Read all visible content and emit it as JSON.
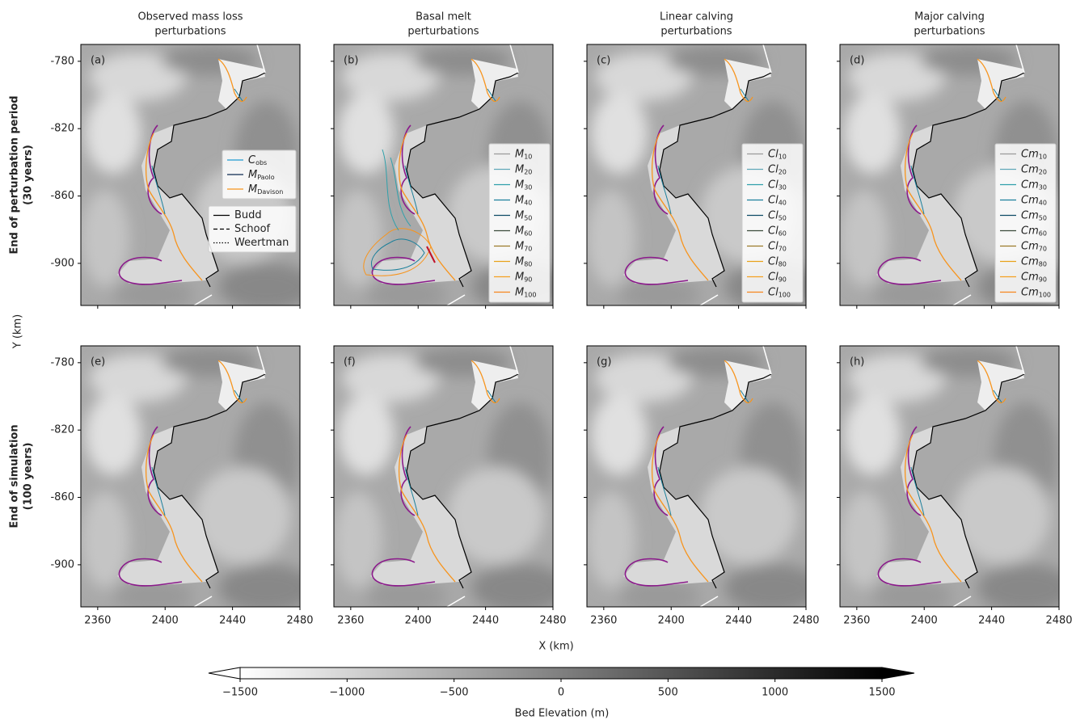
{
  "columns": [
    [
      "Observed mass loss",
      "perturbations"
    ],
    [
      "Basal melt",
      "perturbations"
    ],
    [
      "Linear calving",
      "perturbations"
    ],
    [
      "Major calving",
      "perturbations"
    ]
  ],
  "rows": [
    [
      "End of perturbation period",
      "(30 years)"
    ],
    [
      "End of simulation",
      "(100 years)"
    ]
  ],
  "panel_labels": [
    "(a)",
    "(b)",
    "(c)",
    "(d)",
    "(e)",
    "(f)",
    "(g)",
    "(h)"
  ],
  "x_axis": {
    "label": "X (km)",
    "lim": [
      2350,
      2480
    ],
    "ticks": [
      2360,
      2400,
      2440,
      2480
    ]
  },
  "y_axis": {
    "label": "Y (km)",
    "lim": [
      -925,
      -770
    ],
    "ticks": [
      -780,
      -820,
      -860,
      -900
    ]
  },
  "legends": {
    "observed": [
      {
        "base": "C",
        "sub": "obs",
        "color": "#1f9bd1"
      },
      {
        "base": "M",
        "sub": "Paolo",
        "color": "#0d2b52"
      },
      {
        "base": "M",
        "sub": "Davison",
        "color": "#f7941d"
      }
    ],
    "friction": [
      {
        "name": "Budd",
        "linestyle": "solid"
      },
      {
        "name": "Schoof",
        "linestyle": "dashed"
      },
      {
        "name": "Weertman",
        "linestyle": "dotted"
      }
    ],
    "melt": [
      {
        "base": "M",
        "sub": "10",
        "color": "#9a9a9a"
      },
      {
        "base": "M",
        "sub": "20",
        "color": "#5fa8b8"
      },
      {
        "base": "M",
        "sub": "30",
        "color": "#2fa0aa"
      },
      {
        "base": "M",
        "sub": "40",
        "color": "#1a7f9a"
      },
      {
        "base": "M",
        "sub": "50",
        "color": "#0d4a66"
      },
      {
        "base": "M",
        "sub": "60",
        "color": "#3b4a3a"
      },
      {
        "base": "M",
        "sub": "70",
        "color": "#9a7a2a"
      },
      {
        "base": "M",
        "sub": "80",
        "color": "#e8a21a"
      },
      {
        "base": "M",
        "sub": "90",
        "color": "#f5a020"
      },
      {
        "base": "M",
        "sub": "100",
        "color": "#f7861d"
      }
    ],
    "linear": [
      {
        "base": "Cl",
        "sub": "10",
        "color": "#9a9a9a"
      },
      {
        "base": "Cl",
        "sub": "20",
        "color": "#5fa8b8"
      },
      {
        "base": "Cl",
        "sub": "30",
        "color": "#2fa0aa"
      },
      {
        "base": "Cl",
        "sub": "40",
        "color": "#1a7f9a"
      },
      {
        "base": "Cl",
        "sub": "50",
        "color": "#0d4a66"
      },
      {
        "base": "Cl",
        "sub": "60",
        "color": "#3b4a3a"
      },
      {
        "base": "Cl",
        "sub": "70",
        "color": "#9a7a2a"
      },
      {
        "base": "Cl",
        "sub": "80",
        "color": "#e8a21a"
      },
      {
        "base": "Cl",
        "sub": "90",
        "color": "#f5a020"
      },
      {
        "base": "Cl",
        "sub": "100",
        "color": "#f7861d"
      }
    ],
    "major": [
      {
        "base": "Cm",
        "sub": "10",
        "color": "#9a9a9a"
      },
      {
        "base": "Cm",
        "sub": "20",
        "color": "#5fa8b8"
      },
      {
        "base": "Cm",
        "sub": "30",
        "color": "#2fa0aa"
      },
      {
        "base": "Cm",
        "sub": "40",
        "color": "#1a7f9a"
      },
      {
        "base": "Cm",
        "sub": "50",
        "color": "#0d4a66"
      },
      {
        "base": "Cm",
        "sub": "60",
        "color": "#3b4a3a"
      },
      {
        "base": "Cm",
        "sub": "70",
        "color": "#9a7a2a"
      },
      {
        "base": "Cm",
        "sub": "80",
        "color": "#e8a21a"
      },
      {
        "base": "Cm",
        "sub": "90",
        "color": "#f5a020"
      },
      {
        "base": "Cm",
        "sub": "100",
        "color": "#f7861d"
      }
    ]
  },
  "colorbar": {
    "label": "Bed Elevation (m)",
    "lim": [
      -1500,
      1500
    ],
    "ticks": [
      {
        "value": -1500,
        "label": "−1500"
      },
      {
        "value": -1000,
        "label": "−1000"
      },
      {
        "value": -500,
        "label": "−500"
      },
      0,
      500,
      1000,
      1500
    ]
  }
}
